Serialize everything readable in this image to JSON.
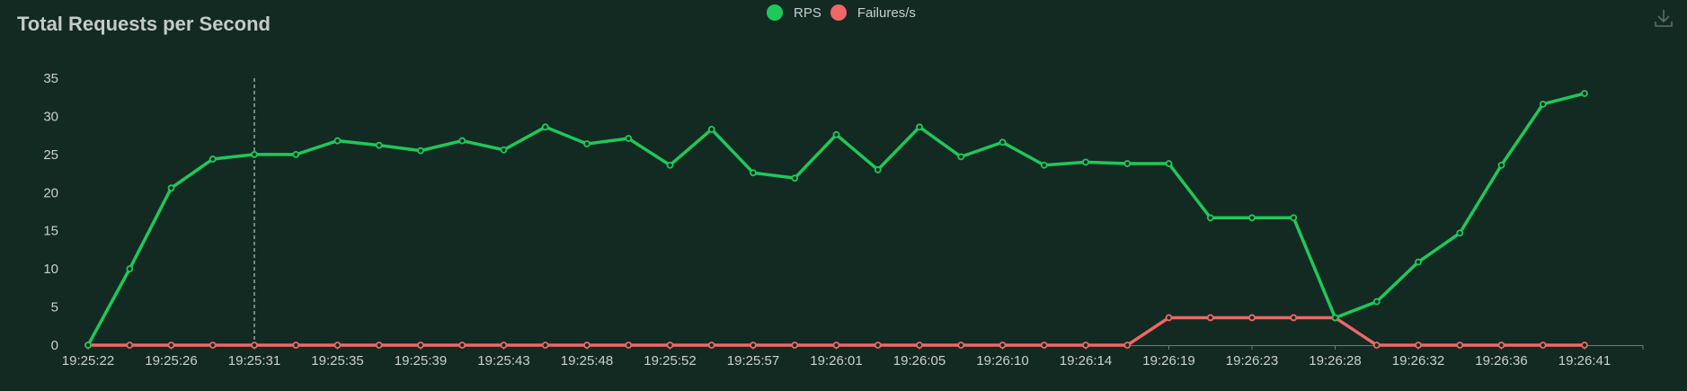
{
  "title": "Total Requests per Second",
  "legend": {
    "rps": {
      "label": "RPS",
      "color": "#1ec85a"
    },
    "failures": {
      "label": "Failures/s",
      "color": "#f06767"
    }
  },
  "toolbar": {
    "download_icon": "download-icon"
  },
  "chart_data": {
    "type": "line",
    "title": "Total Requests per Second",
    "xlabel": "",
    "ylabel": "",
    "ylim": [
      0,
      35
    ],
    "yticks": [
      0,
      5,
      10,
      15,
      20,
      25,
      30,
      35
    ],
    "grid": false,
    "legend_position": "top-center",
    "x_tick_labels": [
      "19:25:22",
      "19:25:26",
      "19:25:31",
      "19:25:35",
      "19:25:39",
      "19:25:43",
      "19:25:48",
      "19:25:52",
      "19:25:57",
      "19:26:01",
      "19:26:05",
      "19:26:10",
      "19:26:14",
      "19:26:19",
      "19:26:23",
      "19:26:28",
      "19:26:32",
      "19:26:36",
      "19:26:41"
    ],
    "point_count": 37,
    "cursor_index": 4,
    "series": [
      {
        "name": "RPS",
        "color": "#1ec85a",
        "values": [
          0,
          10,
          20.6,
          24.4,
          25,
          25,
          26.8,
          26.2,
          25.5,
          26.8,
          25.6,
          28.6,
          26.4,
          27.1,
          23.6,
          28.3,
          22.6,
          21.9,
          27.6,
          23,
          28.6,
          24.7,
          26.6,
          23.6,
          24,
          23.8,
          23.8,
          16.7,
          16.7,
          16.7,
          3.6,
          5.7,
          10.9,
          14.7,
          23.6,
          31.6,
          33
        ]
      },
      {
        "name": "Failures/s",
        "color": "#f06767",
        "values": [
          0,
          0,
          0,
          0,
          0,
          0,
          0,
          0,
          0,
          0,
          0,
          0,
          0,
          0,
          0,
          0,
          0,
          0,
          0,
          0,
          0,
          0,
          0,
          0,
          0,
          0,
          3.6,
          3.6,
          3.6,
          3.6,
          3.6,
          0,
          0,
          0,
          0,
          0,
          0
        ]
      }
    ]
  }
}
